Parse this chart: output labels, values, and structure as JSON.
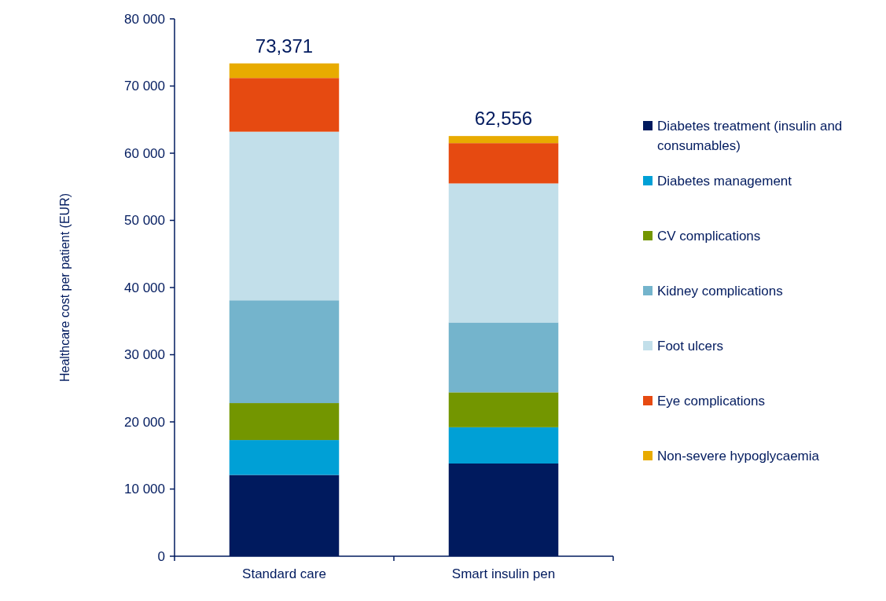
{
  "chart_data": {
    "type": "bar",
    "stacked": true,
    "ylabel": "Healthcare cost per patient (EUR)",
    "categories": [
      "Standard care",
      "Smart insulin pen"
    ],
    "series": [
      {
        "name": "Diabetes treatment (insulin and consumables)",
        "color": "#001a5e",
        "values": [
          12100,
          13800
        ]
      },
      {
        "name": "Diabetes management",
        "color": "#00a0d6",
        "values": [
          5200,
          5400
        ]
      },
      {
        "name": "CV complications",
        "color": "#739600",
        "values": [
          5500,
          5200
        ]
      },
      {
        "name": "Kidney complications",
        "color": "#74b4cc",
        "values": [
          15300,
          10400
        ]
      },
      {
        "name": "Foot ulcers",
        "color": "#c2dfea",
        "values": [
          25100,
          20700
        ]
      },
      {
        "name": "Eye complications",
        "color": "#e64a11",
        "values": [
          8000,
          6000
        ]
      },
      {
        "name": "Non-severe hypoglycaemia",
        "color": "#e8ab00",
        "values": [
          2171,
          1056
        ]
      }
    ],
    "totals": [
      "73,371",
      "62,556"
    ],
    "ylim": [
      0,
      80000
    ],
    "yticks": [
      0,
      {
        "value": 10000,
        "label": "10 000"
      },
      {
        "value": 20000,
        "label": "20 000"
      },
      {
        "value": 30000,
        "label": "30 000"
      },
      {
        "value": 40000,
        "label": "40 000"
      },
      {
        "value": 50000,
        "label": "50 000"
      },
      {
        "value": 60000,
        "label": "60 000"
      },
      {
        "value": 70000,
        "label": "70 000"
      },
      {
        "value": 80000,
        "label": "80 000"
      }
    ],
    "grid": false,
    "legend": "right"
  }
}
